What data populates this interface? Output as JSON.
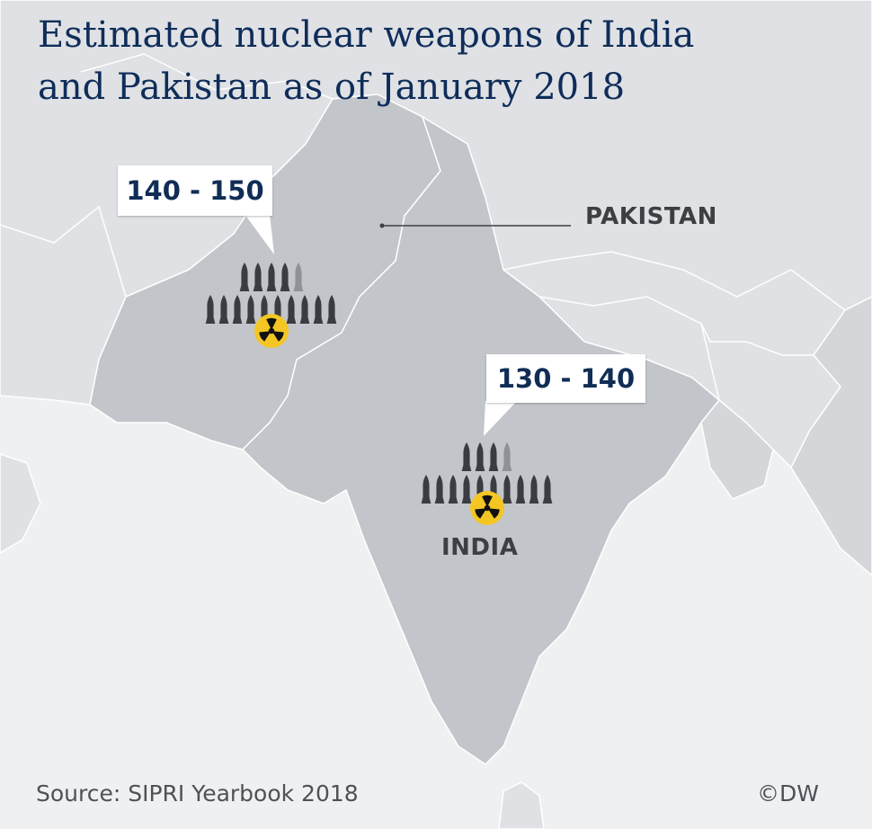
{
  "title": {
    "line1": "Estimated nuclear weapons of India",
    "line2": "and Pakistan as of January 2018"
  },
  "markers": {
    "pakistan": {
      "estimate": "140 - 150"
    },
    "india": {
      "estimate": "130 - 140"
    }
  },
  "labels": {
    "pakistan": "PAKISTAN",
    "india": "INDIA"
  },
  "footer": {
    "source": "Source: SIPRI Yearbook 2018",
    "credit": "©DW"
  },
  "icons": {
    "warhead": "warhead-icon",
    "radiation": "radiation-icon"
  },
  "colors": {
    "title": "#0f2d5a",
    "callout_text": "#102d56",
    "sea": "#eef0f2",
    "land_other": "#dfe1e4",
    "land_focus": "#c2c5ca",
    "warhead": "#3a3c40",
    "warhead_partial": "#8e9196",
    "radiation": "#f3c623"
  }
}
